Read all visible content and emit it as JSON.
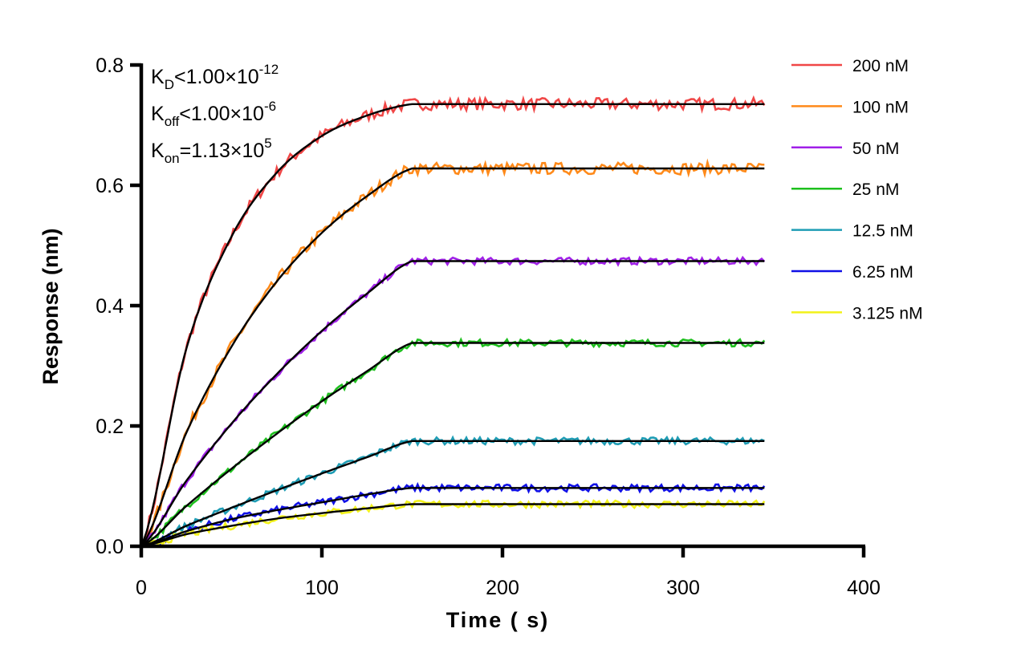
{
  "chart_data": {
    "type": "line",
    "xlabel": "Time ( s)",
    "ylabel": "Response (nm)",
    "xlim": [
      0,
      400
    ],
    "ylim": [
      0,
      0.8
    ],
    "xticks": [
      "0",
      "100",
      "200",
      "300",
      "400"
    ],
    "yticks": [
      "0.0",
      "0.2",
      "0.4",
      "0.6",
      "0.8"
    ],
    "grid": false,
    "legend_position": "right",
    "annotations": [
      {
        "main": "K",
        "sub": "D",
        "rel": "<1.00×10",
        "exp": "-12"
      },
      {
        "main": "K",
        "sub": "off",
        "rel": "<1.00×10",
        "exp": "-6"
      },
      {
        "main": "K",
        "sub": "on",
        "rel": "=1.13×10",
        "exp": "5"
      }
    ],
    "x": [
      0,
      25,
      50,
      75,
      100,
      125,
      150,
      345
    ],
    "fit_color": "#000000",
    "series": [
      {
        "name": "200 nM",
        "color": "#f04646",
        "values": [
          0,
          0.329,
          0.515,
          0.621,
          0.682,
          0.716,
          0.735,
          0.735
        ]
      },
      {
        "name": "100 nM",
        "color": "#ff8a1a",
        "values": [
          0,
          0.189,
          0.332,
          0.44,
          0.521,
          0.582,
          0.628,
          0.628
        ]
      },
      {
        "name": "50 nM",
        "color": "#a020e8",
        "values": [
          0,
          0.109,
          0.204,
          0.286,
          0.358,
          0.42,
          0.474,
          0.474
        ]
      },
      {
        "name": "25 nM",
        "color": "#1ec01e",
        "values": [
          0,
          0.067,
          0.129,
          0.187,
          0.241,
          0.291,
          0.338,
          0.338
        ]
      },
      {
        "name": "12.5 nM",
        "color": "#1f9db5",
        "values": [
          0,
          0.034,
          0.064,
          0.093,
          0.121,
          0.148,
          0.175,
          0.175
        ]
      },
      {
        "name": "6.25 nM",
        "color": "#1010e6",
        "values": [
          0,
          0.025,
          0.045,
          0.06,
          0.073,
          0.086,
          0.097,
          0.097
        ]
      },
      {
        "name": "3.125 nM",
        "color": "#f2f21a",
        "values": [
          0,
          0.02,
          0.034,
          0.046,
          0.055,
          0.063,
          0.07,
          0.07
        ]
      }
    ]
  }
}
